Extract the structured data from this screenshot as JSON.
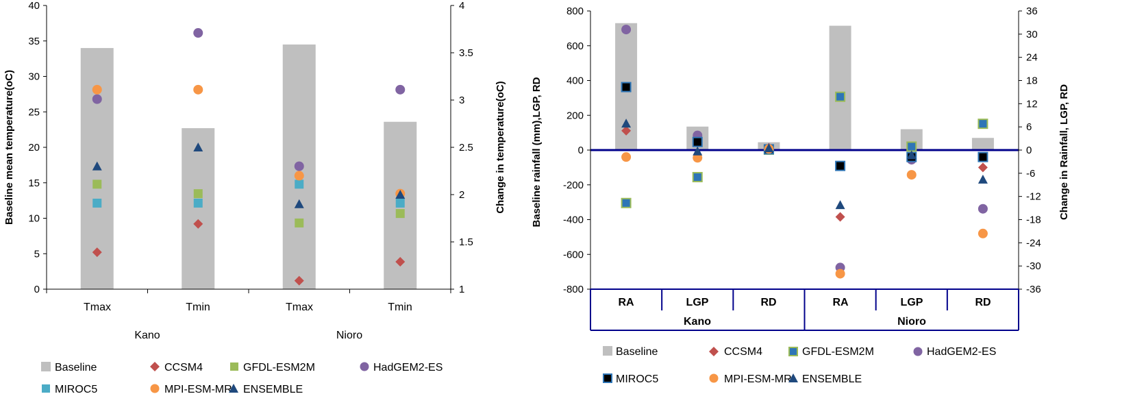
{
  "colors": {
    "baseline": "#bfbfbf",
    "CCSM4": "#c0504d",
    "GFDL-ESM2M": "#9bbb59",
    "GFDL-ESM2M-right": "#2e75b6",
    "HadGEM2-ES": "#8064a2",
    "MIROC5": "#4bacc6",
    "MPI-ESM-MR": "#f79646",
    "ENSEMBLE": "#1f497d",
    "zero_line": "#00008b"
  },
  "chart_data": [
    {
      "type": "bar",
      "title": "",
      "categories": [
        "Tmax",
        "Tmin",
        "Tmax",
        "Tmin"
      ],
      "groups": [
        "Kano",
        "Nioro"
      ],
      "ylabel": "Baseline mean temperature(oC)",
      "ylim": [
        0,
        40
      ],
      "yticks": [
        "0",
        "5",
        "10",
        "15",
        "20",
        "25",
        "30",
        "35",
        "40"
      ],
      "y2label": "Change in temperature(oC)",
      "y2lim": [
        1,
        4
      ],
      "y2ticks": [
        "1",
        "1.5",
        "2",
        "2.5",
        "3",
        "3.5",
        "4"
      ],
      "baseline": [
        34.0,
        22.7,
        34.5,
        23.6
      ],
      "series": [
        {
          "name": "CCSM4",
          "marker": "diamond",
          "values": [
            1.39,
            1.69,
            1.09,
            1.29
          ]
        },
        {
          "name": "GFDL-ESM2M",
          "marker": "square",
          "values": [
            2.11,
            2.01,
            1.7,
            1.8
          ]
        },
        {
          "name": "HadGEM2-ES",
          "marker": "circle",
          "values": [
            3.01,
            3.71,
            2.3,
            3.11
          ]
        },
        {
          "name": "MIROC5",
          "marker": "square",
          "values": [
            1.91,
            1.91,
            2.11,
            1.91
          ]
        },
        {
          "name": "MPI-ESM-MR",
          "marker": "circle",
          "values": [
            3.11,
            3.11,
            2.2,
            2.01
          ]
        },
        {
          "name": "ENSEMBLE",
          "marker": "triangle",
          "values": [
            2.3,
            2.5,
            1.9,
            2.0
          ]
        }
      ],
      "legend": [
        "Baseline",
        "CCSM4",
        "GFDL-ESM2M",
        "HadGEM2-ES",
        "MIROC5",
        "MPI-ESM-MR",
        "ENSEMBLE"
      ]
    },
    {
      "type": "bar",
      "title": "",
      "categories": [
        "RA",
        "LGP",
        "RD",
        "RA",
        "LGP",
        "RD"
      ],
      "groups": [
        "Kano",
        "Nioro"
      ],
      "ylabel": "Baseline rainfall (mm),LGP, RD",
      "ylim": [
        -800,
        800
      ],
      "yticks": [
        "-800",
        "-600",
        "-400",
        "-200",
        "0",
        "200",
        "400",
        "600",
        "800"
      ],
      "y2label": "Change in Rainfall, LGP, RD",
      "y2lim": [
        -36,
        36
      ],
      "y2ticks": [
        "-36",
        "-30",
        "-24",
        "-18",
        "-12",
        "-6",
        "0",
        "6",
        "12",
        "18",
        "24",
        "30",
        "36"
      ],
      "baseline": [
        730,
        135,
        45,
        715,
        120,
        70
      ],
      "series": [
        {
          "name": "CCSM4",
          "marker": "diamond",
          "values": [
            5.0,
            1.8,
            0.6,
            -17.3,
            -2.0,
            -4.5
          ]
        },
        {
          "name": "GFDL-ESM2M",
          "marker": "square",
          "values": [
            -13.7,
            -7.0,
            0.1,
            13.8,
            0.9,
            6.8
          ]
        },
        {
          "name": "HadGEM2-ES",
          "marker": "circle",
          "values": [
            31.2,
            3.8,
            0.4,
            -30.4,
            -2.5,
            -15.2
          ]
        },
        {
          "name": "MIROC5",
          "marker": "square",
          "values": [
            16.3,
            2.1,
            0.2,
            -4.1,
            -1.8,
            -1.8
          ]
        },
        {
          "name": "MPI-ESM-MR",
          "marker": "circle",
          "values": [
            -1.8,
            -2.0,
            0.3,
            -32.0,
            -6.4,
            -21.6
          ]
        },
        {
          "name": "ENSEMBLE",
          "marker": "triangle",
          "values": [
            6.9,
            -0.3,
            0.5,
            -14.2,
            -1.3,
            -7.6
          ]
        }
      ],
      "legend": [
        "Baseline",
        "CCSM4",
        "GFDL-ESM2M",
        "HadGEM2-ES",
        "MIROC5",
        "MPI-ESM-MR",
        "ENSEMBLE"
      ]
    }
  ]
}
